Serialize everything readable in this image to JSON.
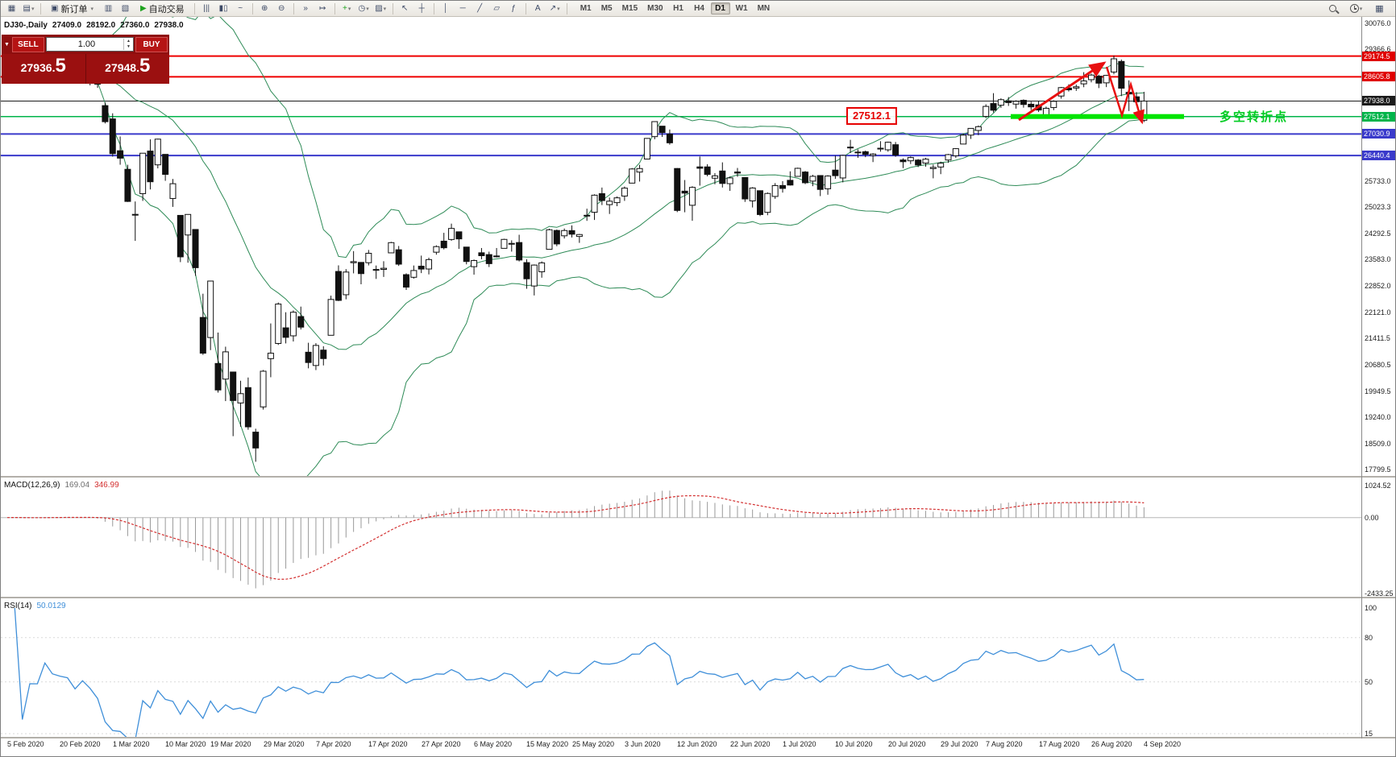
{
  "toolbar": {
    "new_order_label": "新订单",
    "autotrading_label": "自动交易",
    "items": [
      {
        "type": "icon",
        "name": "new-chart-icon",
        "glyph": "▦"
      },
      {
        "type": "icon",
        "name": "chart-profiles-icon",
        "glyph": "▤",
        "caret": true
      },
      {
        "type": "sep"
      },
      {
        "type": "button",
        "name": "new-order-button",
        "glyph": "▣",
        "label": "新订单",
        "caret": true
      },
      {
        "type": "icon",
        "name": "market-watch-icon",
        "glyph": "▥"
      },
      {
        "type": "icon",
        "name": "terminal-icon",
        "glyph": "▧"
      },
      {
        "type": "button",
        "name": "autotrading-button",
        "glyph": "▶",
        "glyph_color": "#1fa31f",
        "label": "自动交易"
      },
      {
        "type": "sep"
      },
      {
        "type": "icon",
        "name": "bars-chart-icon",
        "glyph": "|||"
      },
      {
        "type": "icon",
        "name": "candlestick-chart-icon",
        "glyph": "▮▯"
      },
      {
        "type": "icon",
        "name": "line-chart-icon",
        "glyph": "~"
      },
      {
        "type": "sep"
      },
      {
        "type": "icon",
        "name": "zoom-in-icon",
        "glyph": "⊕"
      },
      {
        "type": "icon",
        "name": "zoom-out-icon",
        "glyph": "⊖"
      },
      {
        "type": "sep"
      },
      {
        "type": "icon",
        "name": "auto-scroll-icon",
        "glyph": "»"
      },
      {
        "type": "icon",
        "name": "chart-shift-icon",
        "glyph": "↦"
      },
      {
        "type": "sep"
      },
      {
        "type": "icon",
        "name": "indicators-icon",
        "glyph": "+",
        "glyph_color": "#1fa31f",
        "caret": true
      },
      {
        "type": "icon",
        "name": "periods-icon",
        "glyph": "◷",
        "caret": true
      },
      {
        "type": "icon",
        "name": "templates-icon",
        "glyph": "▨",
        "caret": true
      },
      {
        "type": "sep"
      },
      {
        "type": "icon",
        "name": "cursor-icon",
        "glyph": "↖"
      },
      {
        "type": "icon",
        "name": "crosshair-icon",
        "glyph": "┼"
      },
      {
        "type": "sep"
      },
      {
        "type": "icon",
        "name": "vertical-line-icon",
        "glyph": "│"
      },
      {
        "type": "icon",
        "name": "horizontal-line-icon",
        "glyph": "─"
      },
      {
        "type": "icon",
        "name": "trendline-icon",
        "glyph": "╱"
      },
      {
        "type": "icon",
        "name": "channel-icon",
        "glyph": "▱"
      },
      {
        "type": "icon",
        "name": "fibonacci-icon",
        "glyph": "ƒ"
      },
      {
        "type": "sep"
      },
      {
        "type": "icon",
        "name": "text-icon",
        "glyph": "A"
      },
      {
        "type": "icon",
        "name": "arrows-icon",
        "glyph": "↗",
        "caret": true
      },
      {
        "type": "sep"
      }
    ],
    "timeframes": [
      "M1",
      "M5",
      "M15",
      "M30",
      "H1",
      "H4",
      "D1",
      "W1",
      "MN"
    ],
    "active_timeframe": "D1"
  },
  "chart_header": {
    "symbol": "DJ30-,Daily",
    "open": "27409.0",
    "high": "28192.0",
    "low": "27360.0",
    "close": "27938.0"
  },
  "trade_panel": {
    "sell_label": "SELL",
    "buy_label": "BUY",
    "volume": "1.00",
    "sell_price": "27936.5",
    "buy_price": "27948.5",
    "sell_main": "27936.",
    "sell_big": "5",
    "buy_main": "27948.",
    "buy_big": "5"
  },
  "annotations": {
    "support_price": "27512.1",
    "turning_point": "多空转折点"
  },
  "macd_panel": {
    "name": "MACD(12,26,9)",
    "main_value": "169.04",
    "signal_value": "346.99",
    "scale": [
      1024.52,
      0,
      -2433.25
    ]
  },
  "rsi_panel": {
    "name": "RSI(14)",
    "value": "50.0129",
    "scale": [
      100,
      80,
      50,
      15
    ]
  },
  "colors": {
    "bull": "#ffffff",
    "bear": "#111111",
    "wick": "#111111",
    "bollinger": "#2e8b57",
    "macd_hist": "#9a9a9a",
    "macd_signal": "#d32f2f",
    "rsi": "#3f8fd9",
    "support_zone": "#00e400",
    "arrow": "#e81010"
  },
  "chart_data": {
    "type": "candlestick",
    "symbol": "DJ30-",
    "timeframe": "Daily",
    "title": "DJ30-,Daily",
    "y_range": [
      17799.5,
      30076.0
    ],
    "last_ohlc": {
      "open": 27409.0,
      "high": 28192.0,
      "low": 27360.0,
      "close": 27938.0
    },
    "price_ticks": [
      30076.0,
      29366.6,
      25733.0,
      25023.3,
      24292.5,
      23583.0,
      22852.0,
      22121.0,
      21411.5,
      20680.5,
      19949.5,
      19240.0,
      18509.0,
      17799.5
    ],
    "levels": [
      {
        "price": 29174.5,
        "label": "29174.5",
        "color": "#ef0000",
        "width": 2,
        "chip_bg": "#e00000"
      },
      {
        "price": 28605.8,
        "label": "28605.8",
        "color": "#ef0000",
        "width": 2,
        "chip_bg": "#e00000"
      },
      {
        "price": 27938.0,
        "label": "27938.0",
        "color": "#1b1b1b",
        "width": 1,
        "chip_bg": "#1b1b1b"
      },
      {
        "price": 27512.1,
        "label": "27512.1",
        "color": "#00b44a",
        "width": 1.5,
        "chip_bg": "#00b44a"
      },
      {
        "price": 27030.9,
        "label": "27030.9",
        "color": "#3a3acb",
        "width": 2,
        "chip_bg": "#3a3acb"
      },
      {
        "price": 26440.4,
        "label": "26440.4",
        "color": "#3a3acb",
        "width": 2,
        "chip_bg": "#3a3acb"
      }
    ],
    "support_zone": {
      "price": 27512.1,
      "x_from": 1253,
      "x_to": 1468
    },
    "indicators": [
      {
        "type": "bollinger",
        "period": 20,
        "deviation": 2
      },
      {
        "type": "macd",
        "fast": 12,
        "slow": 26,
        "signal": 9,
        "current": [
          169.04,
          346.99
        ],
        "range": [
          -2433.25,
          1024.52
        ]
      },
      {
        "type": "rsi",
        "period": 14,
        "current": 50.0129,
        "scale": [
          100,
          80,
          50,
          15
        ]
      }
    ],
    "date_labels": [
      "5 Feb 2020",
      "20 Feb 2020",
      "1 Mar 2020",
      "10 Mar 2020",
      "19 Mar 2020",
      "29 Mar 2020",
      "7 Apr 2020",
      "17 Apr 2020",
      "27 Apr 2020",
      "6 May 2020",
      "15 May 2020",
      "25 May 2020",
      "3 Jun 2020",
      "12 Jun 2020",
      "22 Jun 2020",
      "1 Jul 2020",
      "10 Jul 2020",
      "20 Jul 2020",
      "29 Jul 2020",
      "7 Aug 2020",
      "17 Aug 2020",
      "26 Aug 2020",
      "4 Sep 2020"
    ],
    "date_label_indices": [
      0,
      7,
      14,
      21,
      27,
      34,
      41,
      48,
      55,
      62,
      69,
      75,
      82,
      89,
      96,
      103,
      110,
      117,
      124,
      130,
      137,
      144,
      151
    ],
    "candles": [
      [
        28498,
        28758,
        28450,
        28740
      ],
      [
        28740,
        28858,
        28655,
        28830
      ],
      [
        28800,
        28830,
        28506,
        28553
      ],
      [
        28518,
        28750,
        28458,
        28727
      ],
      [
        28770,
        28865,
        28660,
        28726
      ],
      [
        28800,
        28948,
        28780,
        28931
      ],
      [
        28880,
        28945,
        28742,
        28833
      ],
      [
        28830,
        28891,
        28740,
        28808
      ],
      [
        28808,
        28840,
        28730,
        28790
      ],
      [
        28710,
        28790,
        28570,
        28642
      ],
      [
        28670,
        28819,
        28640,
        28758
      ],
      [
        28740,
        28779,
        28370,
        28629
      ],
      [
        28590,
        28636,
        28302,
        28402
      ],
      [
        27812,
        27899,
        27322,
        27370
      ],
      [
        27447,
        27601,
        26408,
        26491
      ],
      [
        26570,
        26963,
        26186,
        26367
      ],
      [
        26060,
        26185,
        25162,
        25176
      ],
      [
        24820,
        25175,
        24091,
        24819
      ],
      [
        25390,
        26506,
        25191,
        26503
      ],
      [
        26562,
        26884,
        25506,
        25717
      ],
      [
        26183,
        26902,
        26086,
        26890
      ],
      [
        26471,
        26471,
        25743,
        25921
      ],
      [
        25257,
        25794,
        25026,
        25664
      ],
      [
        24792,
        24792,
        23506,
        23651
      ],
      [
        24253,
        24820,
        23490,
        24818
      ],
      [
        24404,
        24404,
        23128,
        23353
      ],
      [
        21984,
        22637,
        20954,
        21000
      ],
      [
        21431,
        22989,
        21085,
        22985
      ],
      [
        20717,
        21568,
        19916,
        19988
      ],
      [
        20287,
        21179,
        19682,
        21037
      ],
      [
        20482,
        20482,
        18717,
        19698
      ],
      [
        19630,
        20242,
        18977,
        19887
      ],
      [
        20053,
        20331,
        18894,
        18973
      ],
      [
        18828,
        18921,
        18013,
        18391
      ],
      [
        19522,
        20537,
        19449,
        20504
      ],
      [
        20850,
        21819,
        20338,
        21000
      ],
      [
        21268,
        22395,
        21227,
        22352
      ],
      [
        21698,
        22127,
        21269,
        21436
      ],
      [
        21478,
        22178,
        21322,
        22127
      ],
      [
        22008,
        22282,
        21652,
        21717
      ],
      [
        21027,
        21287,
        20584,
        20743
      ],
      [
        20662,
        21277,
        20535,
        21213
      ],
      [
        21085,
        21191,
        20663,
        20852
      ],
      [
        21493,
        22583,
        21493,
        22479
      ],
      [
        23249,
        23417,
        22434,
        22453
      ],
      [
        22609,
        23313,
        22482,
        23233
      ],
      [
        23490,
        23809,
        23197,
        23519
      ],
      [
        23498,
        23498,
        22896,
        23190
      ],
      [
        23490,
        23840,
        23416,
        23749
      ],
      [
        23304,
        23413,
        23044,
        23304
      ],
      [
        23306,
        23530,
        23099,
        23337
      ],
      [
        23761,
        24064,
        23761,
        24042
      ],
      [
        23846,
        23950,
        23402,
        23450
      ],
      [
        23161,
        23197,
        22741,
        22818
      ],
      [
        23089,
        23413,
        23051,
        23275
      ],
      [
        23394,
        23685,
        23204,
        23315
      ],
      [
        23317,
        23628,
        23168,
        23575
      ],
      [
        23779,
        23968,
        23711,
        23933
      ],
      [
        24083,
        24312,
        23856,
        23901
      ],
      [
        24129,
        24565,
        24094,
        24433
      ],
      [
        24340,
        24340,
        23870,
        24145
      ],
      [
        23920,
        23920,
        23445,
        23523
      ],
      [
        23381,
        23578,
        23161,
        23549
      ],
      [
        23763,
        23894,
        23585,
        23683
      ],
      [
        23713,
        23794,
        23371,
        23464
      ],
      [
        23656,
        23894,
        23634,
        23675
      ],
      [
        23885,
        24149,
        23885,
        24131
      ],
      [
        24019,
        24106,
        23795,
        24021
      ],
      [
        24045,
        24259,
        23525,
        23564
      ],
      [
        23493,
        23584,
        22773,
        23047
      ],
      [
        22849,
        23442,
        22589,
        23425
      ],
      [
        23241,
        23527,
        23077,
        23485
      ],
      [
        23859,
        24425,
        23859,
        24397
      ],
      [
        24377,
        24402,
        23944,
        24006
      ],
      [
        24230,
        24431,
        24156,
        24375
      ],
      [
        24372,
        24518,
        24183,
        24274
      ],
      [
        24212,
        24282,
        24036,
        24265
      ],
      [
        24794,
        24976,
        24642,
        24795
      ],
      [
        24878,
        25372,
        24666,
        25348
      ],
      [
        25390,
        25558,
        25076,
        25200
      ],
      [
        25088,
        25282,
        24831,
        25183
      ],
      [
        25143,
        25312,
        25045,
        25275
      ],
      [
        25324,
        25587,
        25191,
        25542
      ],
      [
        25680,
        26095,
        25680,
        26069
      ],
      [
        25984,
        26184,
        25723,
        26081
      ],
      [
        26342,
        26920,
        26342,
        26910
      ],
      [
        26959,
        27380,
        26886,
        27372
      ],
      [
        27247,
        27247,
        26951,
        27072
      ],
      [
        27030,
        27155,
        26738,
        26789
      ],
      [
        26082,
        26094,
        24882,
        24928
      ],
      [
        25459,
        25765,
        24878,
        25405
      ],
      [
        25070,
        25593,
        24643,
        25563
      ],
      [
        26126,
        26411,
        25611,
        26089
      ],
      [
        26126,
        26200,
        25868,
        25919
      ],
      [
        25816,
        25954,
        25648,
        25880
      ],
      [
        26013,
        26251,
        25559,
        25671
      ],
      [
        25665,
        25859,
        25467,
        25824
      ],
      [
        25986,
        26097,
        25854,
        25956
      ],
      [
        25833,
        25833,
        25163,
        25245
      ],
      [
        25191,
        25569,
        25010,
        25545
      ],
      [
        25471,
        25471,
        24771,
        24815
      ],
      [
        24876,
        25424,
        24797,
        25395
      ],
      [
        25313,
        25680,
        25248,
        25612
      ],
      [
        25614,
        25734,
        25419,
        25534
      ],
      [
        25757,
        26004,
        25612,
        25627
      ],
      [
        25866,
        26106,
        25866,
        26087
      ],
      [
        25985,
        26013,
        25652,
        25690
      ],
      [
        25735,
        25909,
        25596,
        25867
      ],
      [
        25888,
        25888,
        25323,
        25506
      ],
      [
        25524,
        25898,
        25360,
        25875
      ],
      [
        26038,
        26439,
        25798,
        25885
      ],
      [
        25822,
        26461,
        25701,
        26442
      ],
      [
        26655,
        26871,
        26506,
        26670
      ],
      [
        26517,
        26608,
        26376,
        26534
      ],
      [
        26543,
        26575,
        26394,
        26471
      ],
      [
        26439,
        26504,
        26259,
        26480
      ],
      [
        26624,
        26834,
        26545,
        26640
      ],
      [
        26597,
        26821,
        26544,
        26805
      ],
      [
        26737,
        26811,
        26405,
        26452
      ],
      [
        26317,
        26362,
        26093,
        26269
      ],
      [
        26294,
        26413,
        26206,
        26384
      ],
      [
        26314,
        26342,
        26122,
        26179
      ],
      [
        26231,
        26376,
        26131,
        26339
      ],
      [
        26080,
        26190,
        25812,
        26113
      ],
      [
        26123,
        26270,
        25927,
        26228
      ],
      [
        26316,
        26483,
        26240,
        26464
      ],
      [
        26432,
        26643,
        26373,
        26628
      ],
      [
        26755,
        27043,
        26755,
        27001
      ],
      [
        27001,
        27190,
        26896,
        27186
      ],
      [
        27129,
        27266,
        27000,
        27233
      ],
      [
        27515,
        27849,
        27470,
        27791
      ],
      [
        27869,
        28155,
        27625,
        27686
      ],
      [
        27823,
        28013,
        27752,
        27976
      ],
      [
        27943,
        28047,
        27804,
        27896
      ],
      [
        27854,
        27959,
        27729,
        27931
      ],
      [
        27958,
        27983,
        27757,
        27844
      ],
      [
        27850,
        27921,
        27694,
        27778
      ],
      [
        27832,
        27949,
        27637,
        27692
      ],
      [
        27551,
        27786,
        27491,
        27739
      ],
      [
        27759,
        27959,
        27686,
        27930
      ],
      [
        28076,
        28326,
        28005,
        28308
      ],
      [
        28297,
        28399,
        28200,
        28248
      ],
      [
        28296,
        28392,
        28218,
        28331
      ],
      [
        28411,
        28733,
        28319,
        28492
      ],
      [
        28526,
        28692,
        28453,
        28653
      ],
      [
        28623,
        28664,
        28295,
        28430
      ],
      [
        28439,
        28659,
        28322,
        28645
      ],
      [
        28737,
        29188,
        28674,
        29100
      ],
      [
        29028,
        29080,
        28074,
        28292
      ],
      [
        28178,
        28508,
        27664,
        28133
      ],
      [
        28055,
        28184,
        27852,
        27920
      ],
      [
        27409,
        28192,
        27360,
        27938
      ]
    ]
  }
}
